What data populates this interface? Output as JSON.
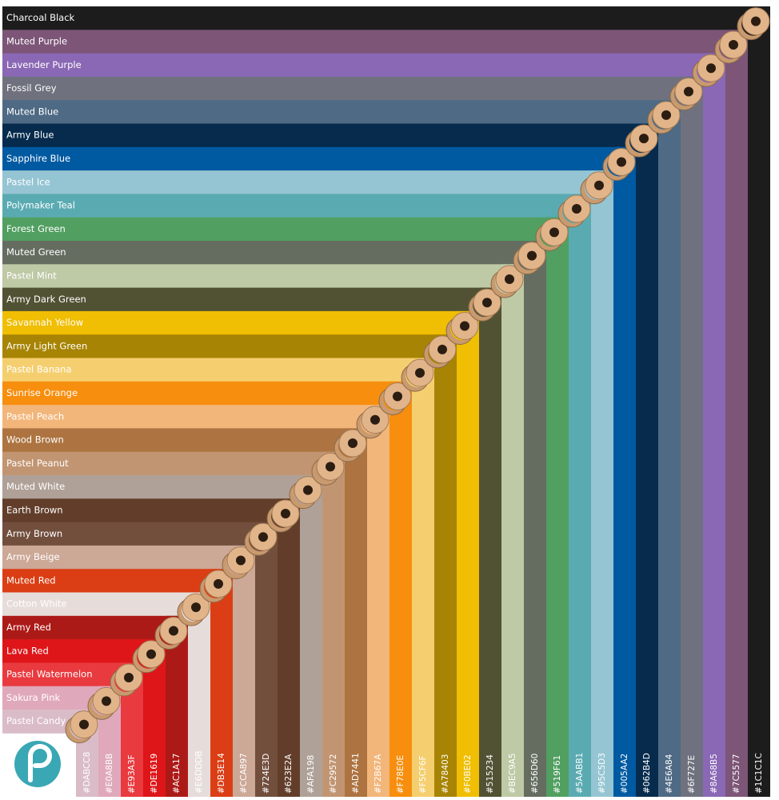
{
  "colors": [
    {
      "name": "Charcoal Black",
      "hex": "#1C1C1C"
    },
    {
      "name": "Muted Purple",
      "hex": "#7C5577"
    },
    {
      "name": "Lavender Purple",
      "hex": "#8A68B5"
    },
    {
      "name": "Fossil Grey",
      "hex": "#6F727E"
    },
    {
      "name": "Muted Blue",
      "hex": "#4E6A84"
    },
    {
      "name": "Army Blue",
      "hex": "#062B4D"
    },
    {
      "name": "Sapphire Blue",
      "hex": "#005AA2"
    },
    {
      "name": "Pastel Ice",
      "hex": "#95C5D3"
    },
    {
      "name": "Polymaker Teal",
      "hex": "#5AABB1"
    },
    {
      "name": "Forest Green",
      "hex": "#519F61"
    },
    {
      "name": "Muted Green",
      "hex": "#656D60"
    },
    {
      "name": "Pastel Mint",
      "hex": "#BEC9A5"
    },
    {
      "name": "Army Dark Green",
      "hex": "#515234"
    },
    {
      "name": "Savannah Yellow",
      "hex": "#F0BE02"
    },
    {
      "name": "Army Light Green",
      "hex": "#A78403"
    },
    {
      "name": "Pastel Banana",
      "hex": "#F5CF6F"
    },
    {
      "name": "Sunrise Orange",
      "hex": "#F78E0E"
    },
    {
      "name": "Pastel Peach",
      "hex": "#F2B67A"
    },
    {
      "name": "Wood Brown",
      "hex": "#AD7441"
    },
    {
      "name": "Pastel Peanut",
      "hex": "#C29572"
    },
    {
      "name": "Muted White",
      "hex": "#AFA198"
    },
    {
      "name": "Earth Brown",
      "hex": "#623E2A"
    },
    {
      "name": "Army Brown",
      "hex": "#724E3D"
    },
    {
      "name": "Army Beige",
      "hex": "#CCA897"
    },
    {
      "name": "Muted Red",
      "hex": "#DB3E14"
    },
    {
      "name": "Cotton White",
      "hex": "#E6DDDB"
    },
    {
      "name": "Army Red",
      "hex": "#AC1A17"
    },
    {
      "name": "Lava Red",
      "hex": "#DE1619"
    },
    {
      "name": "Pastel Watermelon",
      "hex": "#E93A3F"
    },
    {
      "name": "Sakura Pink",
      "hex": "#E0A8BB"
    },
    {
      "name": "Pastel Candy",
      "hex": "#DABCC8"
    }
  ]
}
